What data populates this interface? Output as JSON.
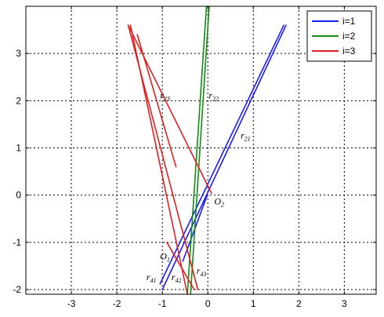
{
  "chart_data": {
    "type": "line",
    "title": "",
    "xlabel": "",
    "ylabel": "",
    "xlim": [
      -4.0,
      3.7
    ],
    "ylim": [
      -2.1,
      4.0
    ],
    "x_ticks": [
      -3,
      -2,
      -1,
      0,
      1,
      2,
      3
    ],
    "y_ticks": [
      -2,
      -1,
      0,
      1,
      2,
      3
    ],
    "x_tick_labels": [
      "-3",
      "-2",
      "-1",
      "0",
      "1",
      "2",
      "3"
    ],
    "y_tick_labels": [
      "-2",
      "-1",
      "0",
      "1",
      "2",
      "3"
    ],
    "grid": true,
    "legend_position": "top-right",
    "series": [
      {
        "name": "i=1",
        "color": "#1a1aff",
        "segments": [
          [
            [
              -1.0,
              -2.0
            ],
            [
              1.72,
              3.6
            ]
          ],
          [
            [
              -1.05,
              -1.88
            ],
            [
              1.67,
              3.6
            ]
          ],
          [
            [
              -0.55,
              -1.4
            ],
            [
              -0.02,
              -0.02
            ]
          ]
        ]
      },
      {
        "name": "i=2",
        "color": "#138a13",
        "segments": [
          [
            [
              -0.45,
              -2.1
            ],
            [
              -0.03,
              4.0
            ]
          ],
          [
            [
              -0.38,
              -2.1
            ],
            [
              0.03,
              4.0
            ]
          ]
        ]
      },
      {
        "name": "i=3",
        "color": "#e02020",
        "segments": [
          [
            [
              -1.75,
              3.6
            ],
            [
              -0.22,
              -2.0
            ]
          ],
          [
            [
              -1.7,
              3.6
            ],
            [
              -0.45,
              -2.1
            ]
          ],
          [
            [
              -1.75,
              3.6
            ],
            [
              0.08,
              0.04
            ]
          ],
          [
            [
              -1.55,
              3.4
            ],
            [
              -0.7,
              0.6
            ]
          ],
          [
            [
              -0.9,
              -1.0
            ],
            [
              -0.3,
              -2.0
            ]
          ]
        ]
      }
    ],
    "annotations": [
      {
        "text": "r",
        "sub": "23",
        "x": -1.05,
        "y": 2.05
      },
      {
        "text": "r",
        "sub": "22",
        "x": 0.02,
        "y": 2.05
      },
      {
        "text": "r",
        "sub": "21",
        "x": 0.72,
        "y": 1.2
      },
      {
        "text": "O",
        "sub": "2",
        "x": 0.14,
        "y": -0.2
      },
      {
        "text": "O",
        "sub": "1",
        "x": -1.05,
        "y": -1.36
      },
      {
        "text": "r",
        "sub": "41",
        "x": -1.35,
        "y": -1.8
      },
      {
        "text": "r",
        "sub": "42",
        "x": -0.8,
        "y": -1.8
      },
      {
        "text": "r",
        "sub": "43",
        "x": -0.25,
        "y": -1.67
      }
    ]
  }
}
